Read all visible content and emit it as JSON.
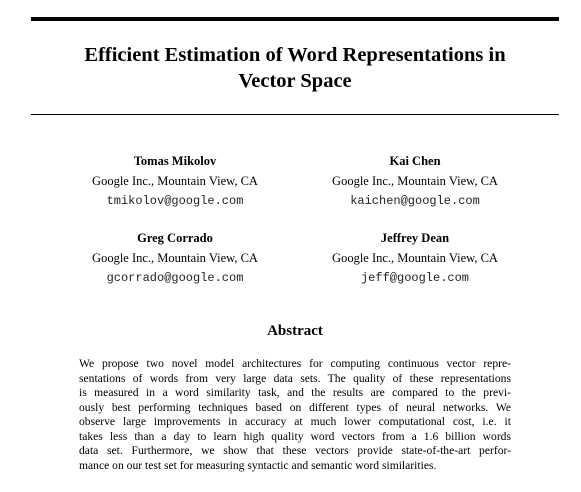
{
  "paper": {
    "title_lines": [
      "Efficient Estimation of Word Representations in",
      "Vector Space"
    ],
    "authors": [
      {
        "name": "Tomas Mikolov",
        "affiliation": "Google Inc., Mountain View, CA",
        "email": "tmikolov@google.com"
      },
      {
        "name": "Kai Chen",
        "affiliation": "Google Inc., Mountain View, CA",
        "email": "kaichen@google.com"
      },
      {
        "name": "Greg Corrado",
        "affiliation": "Google Inc., Mountain View, CA",
        "email": "gcorrado@google.com"
      },
      {
        "name": "Jeffrey Dean",
        "affiliation": "Google Inc., Mountain View, CA",
        "email": "jeff@google.com"
      }
    ],
    "abstract_heading": "Abstract",
    "abstract_lines": [
      "We propose two novel model architectures for computing continuous vector repre-",
      "sentations of words from very large data sets. The quality of these representations",
      "is measured in a word similarity task, and the results are compared to the previ-",
      "ously best performing techniques based on different types of neural networks. We",
      "observe large improvements in accuracy at much lower computational cost, i.e. it",
      "takes less than a day to learn high quality word vectors from a 1.6 billion words",
      "data set. Furthermore, we show that these vectors provide state-of-the-art perfor-",
      "mance on our test set for measuring syntactic and semantic word similarities."
    ]
  }
}
